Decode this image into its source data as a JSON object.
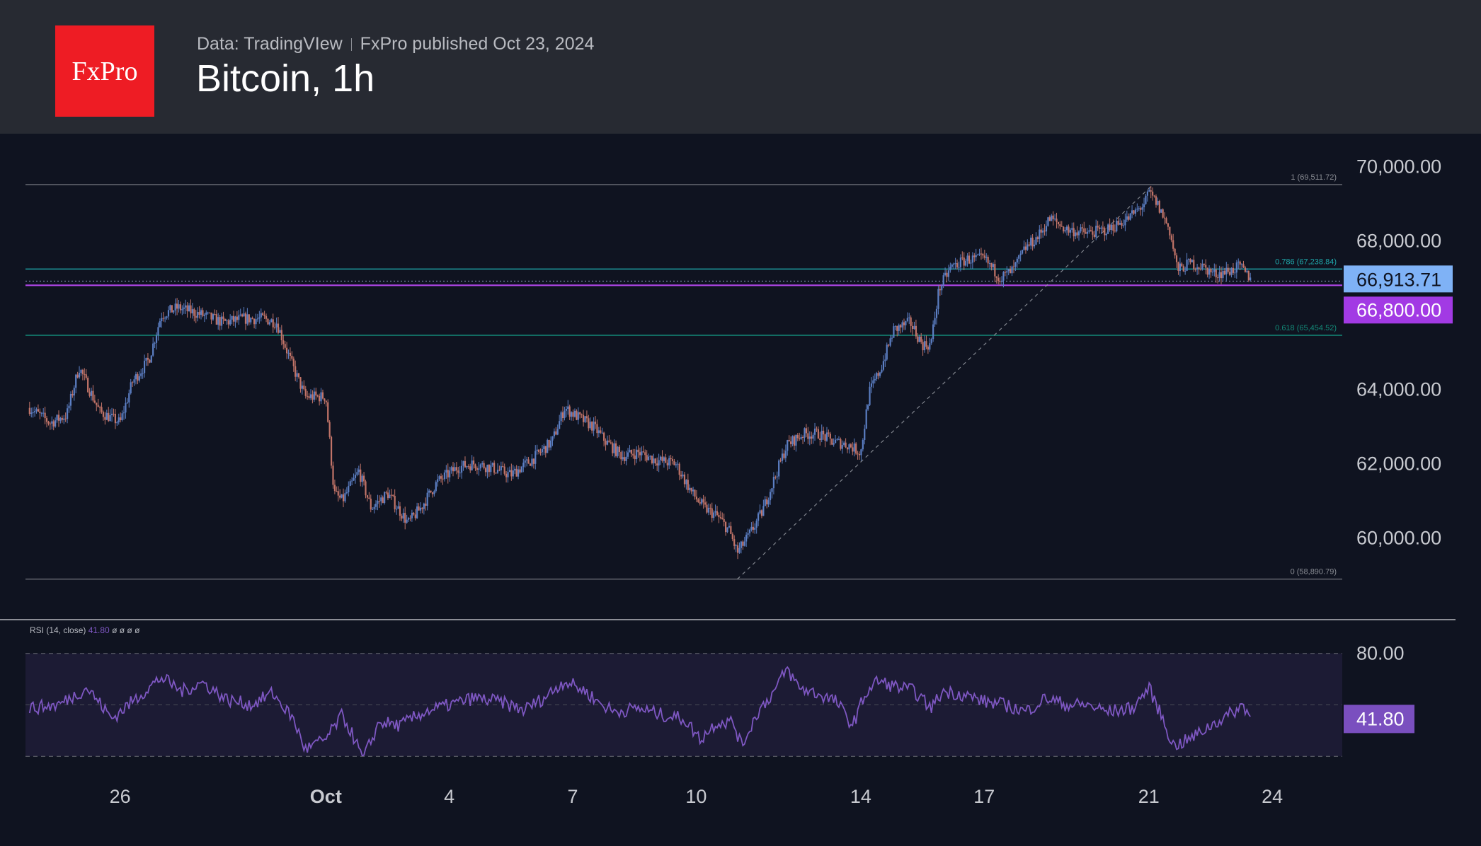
{
  "header": {
    "logo_text": "FxPro",
    "source": "Data: TradingVIew",
    "publisher": "FxPro published Oct 23, 2024",
    "title": "Bitcoin, 1h"
  },
  "colors": {
    "background": "#0f1320",
    "header_bg": "#272a32",
    "logo_red": "#ee1c24",
    "candle_up": "#5c7fc4",
    "candle_down": "#c27468",
    "fib_786": "#1fa5a8",
    "fib_618": "#138a78",
    "level_line": "#b046e8",
    "price_label": "#7fb2f6",
    "level_label": "#a23ae4",
    "rsi_line": "#7e57c2",
    "rsi_label": "#7a4fbf"
  },
  "chart_data": [
    {
      "type": "candlestick",
      "symbol": "Bitcoin",
      "timeframe": "1h",
      "y_ticks": [
        "70,000.00",
        "68,000.00",
        "64,000.00",
        "62,000.00",
        "60,000.00"
      ],
      "ylim": [
        58600,
        70500
      ],
      "x_ticks": [
        "26",
        "Oct",
        "4",
        "7",
        "10",
        "14",
        "17",
        "21",
        "24"
      ],
      "x_tick_days": [
        26,
        31,
        34,
        37,
        40,
        44,
        47,
        51,
        54
      ],
      "xlim_days": [
        23.7,
        55.7
      ],
      "series_points": [
        [
          23.8,
          63500
        ],
        [
          24.3,
          63100
        ],
        [
          24.7,
          63300
        ],
        [
          25.0,
          64600
        ],
        [
          25.5,
          63400
        ],
        [
          26.0,
          63100
        ],
        [
          26.3,
          64200
        ],
        [
          26.7,
          64800
        ],
        [
          27.0,
          66000
        ],
        [
          27.4,
          66200
        ],
        [
          28.0,
          66000
        ],
        [
          28.5,
          65800
        ],
        [
          29.0,
          65900
        ],
        [
          29.5,
          65900
        ],
        [
          29.8,
          65800
        ],
        [
          30.2,
          64600
        ],
        [
          30.5,
          63800
        ],
        [
          31.0,
          63800
        ],
        [
          31.2,
          61200
        ],
        [
          31.4,
          61000
        ],
        [
          31.8,
          61800
        ],
        [
          32.1,
          60800
        ],
        [
          32.5,
          61200
        ],
        [
          33.0,
          60400
        ],
        [
          33.3,
          60800
        ],
        [
          33.7,
          61500
        ],
        [
          34.2,
          61900
        ],
        [
          34.6,
          62000
        ],
        [
          35.0,
          61900
        ],
        [
          35.5,
          61700
        ],
        [
          36.0,
          62100
        ],
        [
          36.5,
          62600
        ],
        [
          36.8,
          63500
        ],
        [
          37.2,
          63200
        ],
        [
          37.5,
          63000
        ],
        [
          37.8,
          62600
        ],
        [
          38.2,
          62200
        ],
        [
          38.6,
          62300
        ],
        [
          39.0,
          62100
        ],
        [
          39.5,
          62000
        ],
        [
          39.9,
          61200
        ],
        [
          40.2,
          60800
        ],
        [
          40.5,
          60600
        ],
        [
          40.8,
          60200
        ],
        [
          41.0,
          59600
        ],
        [
          41.3,
          60100
        ],
        [
          41.6,
          60700
        ],
        [
          41.9,
          61600
        ],
        [
          42.2,
          62500
        ],
        [
          42.6,
          62800
        ],
        [
          43.0,
          62800
        ],
        [
          43.3,
          62600
        ],
        [
          43.7,
          62500
        ],
        [
          44.0,
          62300
        ],
        [
          44.2,
          63900
        ],
        [
          44.5,
          64600
        ],
        [
          44.8,
          65600
        ],
        [
          45.2,
          65800
        ],
        [
          45.5,
          65200
        ],
        [
          45.7,
          65200
        ],
        [
          45.9,
          66700
        ],
        [
          46.2,
          67300
        ],
        [
          46.6,
          67500
        ],
        [
          47.0,
          67500
        ],
        [
          47.4,
          67000
        ],
        [
          47.7,
          67200
        ],
        [
          48.0,
          67800
        ],
        [
          48.3,
          68100
        ],
        [
          48.6,
          68600
        ],
        [
          49.0,
          68300
        ],
        [
          49.5,
          68200
        ],
        [
          50.0,
          68300
        ],
        [
          50.5,
          68600
        ],
        [
          50.9,
          69000
        ],
        [
          51.0,
          69300
        ],
        [
          51.2,
          69000
        ],
        [
          51.5,
          68300
        ],
        [
          51.7,
          67200
        ],
        [
          52.0,
          67400
        ],
        [
          52.3,
          67300
        ],
        [
          52.6,
          67100
        ],
        [
          53.0,
          67200
        ],
        [
          53.2,
          67300
        ],
        [
          53.5,
          66950
        ]
      ],
      "fib_levels": [
        {
          "label": "1 (69,511.72)",
          "price": 69511.72
        },
        {
          "label": "0.786 (67,238.84)",
          "price": 67238.84
        },
        {
          "label": "0.618 (65,454.52)",
          "price": 65454.52
        },
        {
          "label": "0 (58,890.79)",
          "price": 58890.79
        }
      ],
      "horizontal_level": {
        "price": 66800,
        "label": "66,800.00"
      },
      "last_price": {
        "price": 66913.71,
        "label": "66,913.71"
      },
      "trend_line": {
        "from": [
          41.0,
          58890.79
        ],
        "to": [
          51.1,
          69511.72
        ]
      }
    },
    {
      "type": "line",
      "name": "RSI",
      "legend": "RSI (14, close)",
      "legend_value": "41.80",
      "legend_extra": "ø ø ø ø",
      "y_ticks": [
        "80.00"
      ],
      "upper_band": 80,
      "lower_band": 20,
      "ylim": [
        16,
        84
      ],
      "last_value": 41.8,
      "last_label": "41.80",
      "series_points": [
        [
          23.8,
          48
        ],
        [
          24.5,
          50
        ],
        [
          25.2,
          60
        ],
        [
          25.8,
          42
        ],
        [
          26.5,
          56
        ],
        [
          27.0,
          66
        ],
        [
          27.5,
          58
        ],
        [
          28.0,
          63
        ],
        [
          28.6,
          53
        ],
        [
          29.2,
          50
        ],
        [
          29.7,
          57
        ],
        [
          30.2,
          42
        ],
        [
          30.5,
          24
        ],
        [
          31.0,
          30
        ],
        [
          31.4,
          44
        ],
        [
          31.7,
          30
        ],
        [
          31.9,
          18
        ],
        [
          32.3,
          40
        ],
        [
          32.8,
          38
        ],
        [
          33.4,
          46
        ],
        [
          34.0,
          50
        ],
        [
          34.6,
          54
        ],
        [
          35.2,
          52
        ],
        [
          35.8,
          47
        ],
        [
          36.3,
          54
        ],
        [
          36.8,
          64
        ],
        [
          37.3,
          58
        ],
        [
          37.6,
          52
        ],
        [
          38.0,
          46
        ],
        [
          38.6,
          48
        ],
        [
          39.2,
          44
        ],
        [
          39.7,
          42
        ],
        [
          40.1,
          30
        ],
        [
          40.5,
          40
        ],
        [
          40.9,
          40
        ],
        [
          41.1,
          26
        ],
        [
          41.5,
          46
        ],
        [
          41.9,
          58
        ],
        [
          42.2,
          71
        ],
        [
          42.5,
          60
        ],
        [
          43.0,
          56
        ],
        [
          43.4,
          52
        ],
        [
          43.8,
          38
        ],
        [
          44.1,
          56
        ],
        [
          44.4,
          64
        ],
        [
          44.8,
          61
        ],
        [
          45.3,
          58
        ],
        [
          45.7,
          48
        ],
        [
          46.0,
          58
        ],
        [
          46.5,
          56
        ],
        [
          47.0,
          52
        ],
        [
          47.5,
          50
        ],
        [
          48.0,
          46
        ],
        [
          48.5,
          54
        ],
        [
          49.0,
          50
        ],
        [
          49.5,
          50
        ],
        [
          50.0,
          46
        ],
        [
          50.6,
          48
        ],
        [
          51.0,
          60
        ],
        [
          51.3,
          44
        ],
        [
          51.6,
          26
        ],
        [
          52.0,
          30
        ],
        [
          52.5,
          38
        ],
        [
          53.0,
          45
        ],
        [
          53.3,
          50
        ],
        [
          53.5,
          41.8
        ]
      ]
    }
  ]
}
